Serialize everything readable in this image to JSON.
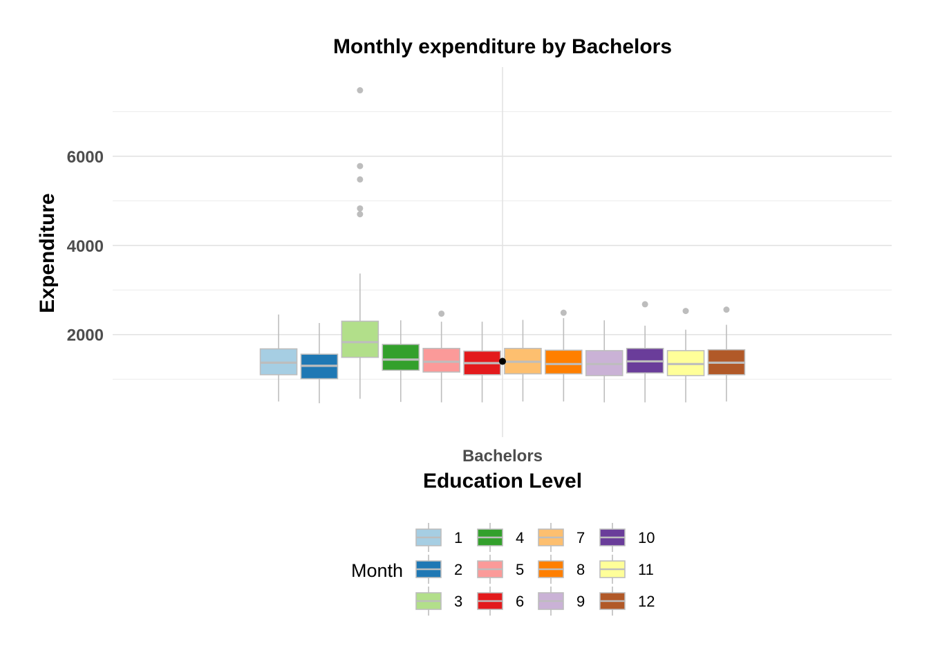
{
  "chart_data": {
    "type": "boxplot",
    "title": "Monthly expenditure by Bachelors",
    "xlabel": "Education Level",
    "ylabel": "Expenditure",
    "categories": [
      "Bachelors"
    ],
    "ylim": [
      -300,
      8000
    ],
    "y_major_ticks": [
      2000,
      4000,
      6000
    ],
    "y_minor_ticks": [
      1000,
      3000,
      5000,
      7000
    ],
    "grid": true,
    "legend": {
      "title": "Month",
      "position": "bottom"
    },
    "group_mean": 1400,
    "series": [
      {
        "name": "1",
        "color": "#A6CEE3",
        "lower_whisker": 500,
        "q1": 1100,
        "median": 1370,
        "q3": 1680,
        "upper_whisker": 2450,
        "outliers": []
      },
      {
        "name": "2",
        "color": "#1F78B4",
        "lower_whisker": 460,
        "q1": 1010,
        "median": 1300,
        "q3": 1560,
        "upper_whisker": 2260,
        "outliers": []
      },
      {
        "name": "3",
        "color": "#B2DF8A",
        "lower_whisker": 560,
        "q1": 1490,
        "median": 1830,
        "q3": 2300,
        "upper_whisker": 3370,
        "outliers": [
          4700,
          4830,
          5480,
          5780,
          7480
        ]
      },
      {
        "name": "4",
        "color": "#33A02C",
        "lower_whisker": 490,
        "q1": 1200,
        "median": 1440,
        "q3": 1780,
        "upper_whisker": 2320,
        "outliers": []
      },
      {
        "name": "5",
        "color": "#FB9A99",
        "lower_whisker": 480,
        "q1": 1160,
        "median": 1390,
        "q3": 1690,
        "upper_whisker": 2290,
        "outliers": [
          2470
        ]
      },
      {
        "name": "6",
        "color": "#E31A1C",
        "lower_whisker": 480,
        "q1": 1100,
        "median": 1360,
        "q3": 1630,
        "upper_whisker": 2290,
        "outliers": []
      },
      {
        "name": "7",
        "color": "#FDBF6F",
        "lower_whisker": 500,
        "q1": 1120,
        "median": 1390,
        "q3": 1690,
        "upper_whisker": 2330,
        "outliers": []
      },
      {
        "name": "8",
        "color": "#FF7F00",
        "lower_whisker": 500,
        "q1": 1120,
        "median": 1340,
        "q3": 1650,
        "upper_whisker": 2370,
        "outliers": [
          2490
        ]
      },
      {
        "name": "9",
        "color": "#CAB2D6",
        "lower_whisker": 480,
        "q1": 1080,
        "median": 1340,
        "q3": 1640,
        "upper_whisker": 2320,
        "outliers": []
      },
      {
        "name": "10",
        "color": "#6A3D9A",
        "lower_whisker": 480,
        "q1": 1140,
        "median": 1400,
        "q3": 1690,
        "upper_whisker": 2200,
        "outliers": [
          2680
        ]
      },
      {
        "name": "11",
        "color": "#FFFF99",
        "lower_whisker": 480,
        "q1": 1080,
        "median": 1340,
        "q3": 1640,
        "upper_whisker": 2110,
        "outliers": [
          2530
        ]
      },
      {
        "name": "12",
        "color": "#B15928",
        "lower_whisker": 500,
        "q1": 1100,
        "median": 1370,
        "q3": 1660,
        "upper_whisker": 2220,
        "outliers": [
          2560
        ]
      }
    ]
  }
}
